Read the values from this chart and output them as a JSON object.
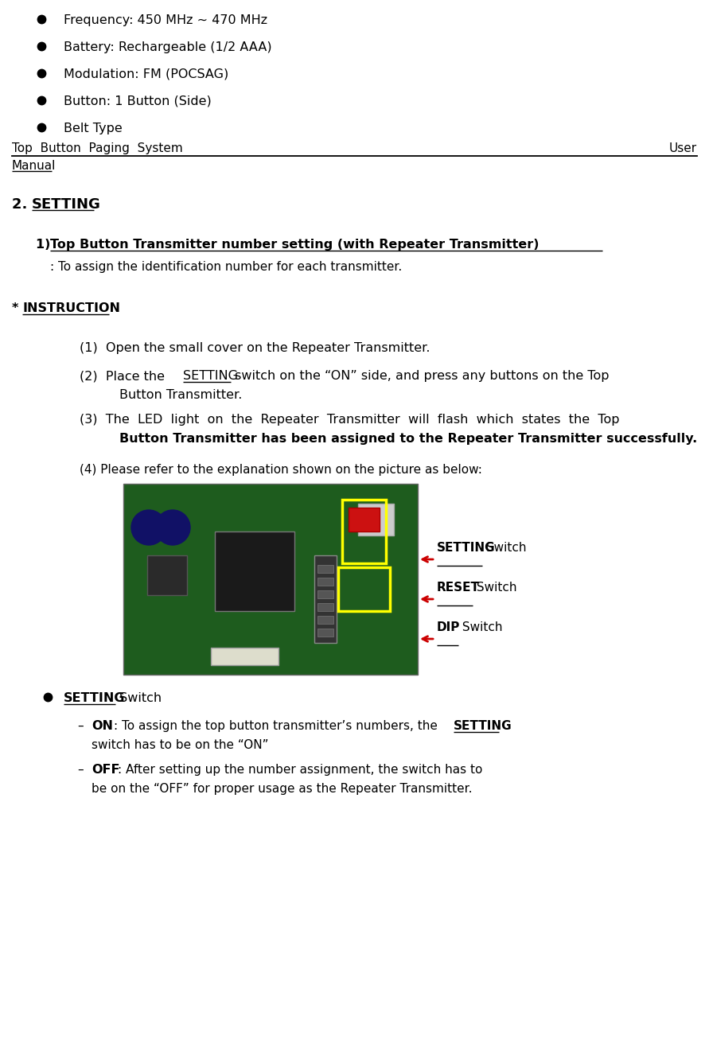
{
  "bg_color": "#ffffff",
  "bullet_items": [
    "Frequency: 450 MHz ~ 470 MHz",
    "Battery: Rechargeable (1/2 AAA)",
    "Modulation: FM (POCSAG)",
    "Button: 1 Button (Side)",
    "Belt Type"
  ],
  "header_left": "Top  Button  Paging  System",
  "header_right": "User",
  "header_right2": "Manual",
  "section_num": "2. ",
  "section_word": "SETTING",
  "sub1_num": "1) ",
  "sub1_text": "Top Button Transmitter number setting (with Repeater Transmitter)",
  "sub1_desc": ": To assign the identification number for each transmitter.",
  "instr_star": "* ",
  "instr_word": "INSTRUCTION",
  "step1": "(1)  Open the small cover on the Repeater Transmitter.",
  "step2_pre": "(2)  Place the ",
  "step2_ul": "SETTING",
  "step2_post": " switch on the “ON” side, and press any buttons on the Top",
  "step2_cont": "Button Transmitter.",
  "step3_line1": "(3)  The  LED  light  on  the  Repeater  Transmitter  will  flash  which  states  the  Top",
  "step3_line2": "Button Transmitter has been assigned to the Repeater Transmitter successfully.",
  "step4": "(4) Please refer to the explanation shown on the picture as below:",
  "lbl_setting": "SETTING",
  "lbl_setting2": " Switch",
  "lbl_reset": "RESET",
  "lbl_reset2": " Switch",
  "lbl_dip": "DIP",
  "lbl_dip2": " Switch",
  "bull2_ul": "SETTING",
  "bull2_plain": " Switch",
  "d1_dash": "–",
  "d1_bold": "ON",
  "d1_text": ": To assign the top button transmitter’s numbers, the ",
  "d1_ul": "SETTING",
  "d1_cont": "switch has to be on the “ON”",
  "d2_dash": "–",
  "d2_bold": "OFF",
  "d2_text": ": After setting up the number assignment, the switch has to",
  "d2_cont": "be on the “OFF” for proper usage as the Repeater Transmitter.",
  "pcb_color": "#1e5c1e",
  "pcb_border": "#888888",
  "ic_color": "#1a1a1a",
  "cap_color": "#111166",
  "yellow_box": "#ffff00",
  "red_arrow": "#cc0000"
}
